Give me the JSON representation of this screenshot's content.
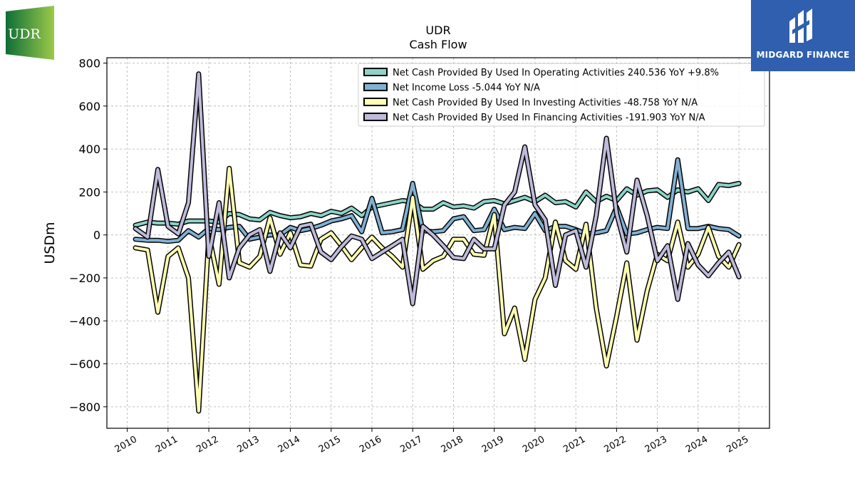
{
  "chart_data": {
    "type": "line",
    "title": "UDR",
    "subtitle": "Cash Flow",
    "ylabel": "USDm",
    "xlabel": "",
    "ylim": [
      -900,
      825
    ],
    "xlim": [
      2009.5,
      2025.75
    ],
    "yticks": [
      800,
      600,
      400,
      200,
      0,
      -200,
      -400,
      -600,
      -800
    ],
    "ytick_labels": [
      "800",
      "600",
      "400",
      "200",
      "0",
      "−200",
      "−400",
      "−600",
      "−800"
    ],
    "xticks": [
      2010,
      2011,
      2012,
      2013,
      2014,
      2015,
      2016,
      2017,
      2018,
      2019,
      2020,
      2021,
      2022,
      2023,
      2024,
      2025
    ],
    "xtick_labels": [
      "2010",
      "2011",
      "2012",
      "2013",
      "2014",
      "2015",
      "2016",
      "2017",
      "2018",
      "2019",
      "2020",
      "2021",
      "2022",
      "2023",
      "2024",
      "2025"
    ],
    "grid": true,
    "legend_position": "top-right",
    "series": [
      {
        "name": "Net Cash Provided By Used In Operating Activities  240.536 YoY +9.8%",
        "color": "#8dd3c7",
        "x": [
          2010.2,
          2010.5,
          2010.75,
          2011.0,
          2011.25,
          2011.5,
          2011.75,
          2012.0,
          2012.25,
          2012.5,
          2012.75,
          2013.0,
          2013.25,
          2013.5,
          2013.75,
          2014.0,
          2014.25,
          2014.5,
          2014.75,
          2015.0,
          2015.25,
          2015.5,
          2015.75,
          2016.0,
          2016.25,
          2016.5,
          2016.75,
          2017.0,
          2017.25,
          2017.5,
          2017.75,
          2018.0,
          2018.25,
          2018.5,
          2018.75,
          2019.0,
          2019.25,
          2019.5,
          2019.75,
          2020.0,
          2020.25,
          2020.5,
          2020.75,
          2021.0,
          2021.25,
          2021.5,
          2021.75,
          2022.0,
          2022.25,
          2022.5,
          2022.75,
          2023.0,
          2023.25,
          2023.5,
          2023.75,
          2024.0,
          2024.25,
          2024.5,
          2024.75,
          2025.0
        ],
        "values": [
          45,
          60,
          55,
          55,
          50,
          65,
          65,
          65,
          60,
          100,
          95,
          75,
          70,
          105,
          90,
          80,
          85,
          100,
          90,
          110,
          100,
          125,
          90,
          130,
          140,
          150,
          160,
          155,
          120,
          120,
          150,
          130,
          135,
          125,
          155,
          160,
          145,
          160,
          175,
          155,
          185,
          150,
          155,
          130,
          200,
          155,
          180,
          160,
          215,
          185,
          205,
          210,
          175,
          210,
          200,
          215,
          160,
          235,
          230,
          240
        ]
      },
      {
        "name": "Net Income Loss  -5.044 YoY N/A",
        "color": "#80b1d3",
        "x": [
          2010.2,
          2010.5,
          2010.75,
          2011.0,
          2011.25,
          2011.5,
          2011.75,
          2012.0,
          2012.25,
          2012.5,
          2012.75,
          2013.0,
          2013.25,
          2013.5,
          2013.75,
          2014.0,
          2014.25,
          2014.5,
          2014.75,
          2015.0,
          2015.25,
          2015.5,
          2015.75,
          2016.0,
          2016.25,
          2016.5,
          2016.75,
          2017.0,
          2017.25,
          2017.5,
          2017.75,
          2018.0,
          2018.25,
          2018.5,
          2018.75,
          2019.0,
          2019.25,
          2019.5,
          2019.75,
          2020.0,
          2020.25,
          2020.5,
          2020.75,
          2021.0,
          2021.25,
          2021.5,
          2021.75,
          2022.0,
          2022.25,
          2022.5,
          2022.75,
          2023.0,
          2023.25,
          2023.5,
          2023.75,
          2024.0,
          2024.25,
          2024.5,
          2024.75,
          2025.0
        ],
        "values": [
          -20,
          -25,
          -25,
          -30,
          -25,
          20,
          -10,
          30,
          25,
          35,
          40,
          -20,
          -10,
          0,
          0,
          35,
          20,
          30,
          45,
          65,
          75,
          90,
          15,
          170,
          10,
          15,
          25,
          240,
          20,
          15,
          20,
          75,
          85,
          20,
          25,
          120,
          25,
          35,
          30,
          100,
          20,
          40,
          40,
          25,
          5,
          10,
          20,
          130,
          5,
          10,
          25,
          35,
          30,
          350,
          30,
          30,
          40,
          30,
          25,
          -5
        ]
      },
      {
        "name": "Net Cash Provided By Used In Investing Activities  -48.758 YoY N/A",
        "color": "#ffffb3",
        "x": [
          2010.2,
          2010.5,
          2010.75,
          2011.0,
          2011.25,
          2011.5,
          2011.75,
          2012.0,
          2012.25,
          2012.5,
          2012.75,
          2013.0,
          2013.25,
          2013.5,
          2013.75,
          2014.0,
          2014.25,
          2014.5,
          2014.75,
          2015.0,
          2015.25,
          2015.5,
          2015.75,
          2016.0,
          2016.25,
          2016.5,
          2016.75,
          2017.0,
          2017.25,
          2017.5,
          2017.75,
          2018.0,
          2018.25,
          2018.5,
          2018.75,
          2019.0,
          2019.25,
          2019.5,
          2019.75,
          2020.0,
          2020.25,
          2020.5,
          2020.75,
          2021.0,
          2021.25,
          2021.5,
          2021.75,
          2022.0,
          2022.25,
          2022.5,
          2022.75,
          2023.0,
          2023.25,
          2023.5,
          2023.75,
          2024.0,
          2024.25,
          2024.5,
          2024.75,
          2025.0
        ],
        "values": [
          -60,
          -70,
          -360,
          -100,
          -60,
          -200,
          -820,
          0,
          -230,
          310,
          -130,
          -150,
          -100,
          80,
          -90,
          10,
          -140,
          -145,
          -20,
          10,
          -50,
          -115,
          -60,
          -10,
          -60,
          -100,
          -150,
          175,
          -160,
          -120,
          -100,
          -20,
          -20,
          -90,
          -95,
          95,
          -460,
          -340,
          -580,
          -300,
          -200,
          60,
          -120,
          -160,
          50,
          -340,
          -610,
          -380,
          -130,
          -490,
          -260,
          -90,
          -120,
          60,
          -150,
          -90,
          35,
          -100,
          -150,
          -45
        ]
      },
      {
        "name": "Net Cash Provided By Used In Financing Activities  -191.903 YoY N/A",
        "color": "#bebada",
        "x": [
          2010.2,
          2010.5,
          2010.75,
          2011.0,
          2011.25,
          2011.5,
          2011.75,
          2012.0,
          2012.25,
          2012.5,
          2012.75,
          2013.0,
          2013.25,
          2013.5,
          2013.75,
          2014.0,
          2014.25,
          2014.5,
          2014.75,
          2015.0,
          2015.25,
          2015.5,
          2015.75,
          2016.0,
          2016.25,
          2016.5,
          2016.75,
          2017.0,
          2017.25,
          2017.5,
          2017.75,
          2018.0,
          2018.25,
          2018.5,
          2018.75,
          2019.0,
          2019.25,
          2019.5,
          2019.75,
          2020.0,
          2020.25,
          2020.5,
          2020.75,
          2021.0,
          2021.25,
          2021.5,
          2021.75,
          2022.0,
          2022.25,
          2022.5,
          2022.75,
          2023.0,
          2023.25,
          2023.5,
          2023.75,
          2024.0,
          2024.25,
          2024.5,
          2024.75,
          2025.0
        ],
        "values": [
          30,
          -10,
          305,
          40,
          5,
          150,
          750,
          -100,
          150,
          -200,
          -60,
          0,
          25,
          -170,
          10,
          -60,
          40,
          50,
          -80,
          -115,
          -55,
          -5,
          -20,
          -110,
          -80,
          -50,
          -20,
          -320,
          40,
          0,
          -50,
          -105,
          -110,
          -20,
          -65,
          -65,
          140,
          200,
          410,
          140,
          70,
          -235,
          0,
          20,
          -150,
          90,
          450,
          100,
          -80,
          255,
          90,
          -120,
          -50,
          -300,
          -40,
          -140,
          -190,
          -130,
          -80,
          -195
        ]
      }
    ]
  },
  "branding": {
    "left_logo_text": "UDR",
    "right_logo_text": "MIDGARD FINANCE",
    "right_logo_color": "#2f5fae",
    "left_logo_color": "#1e7a3a"
  }
}
